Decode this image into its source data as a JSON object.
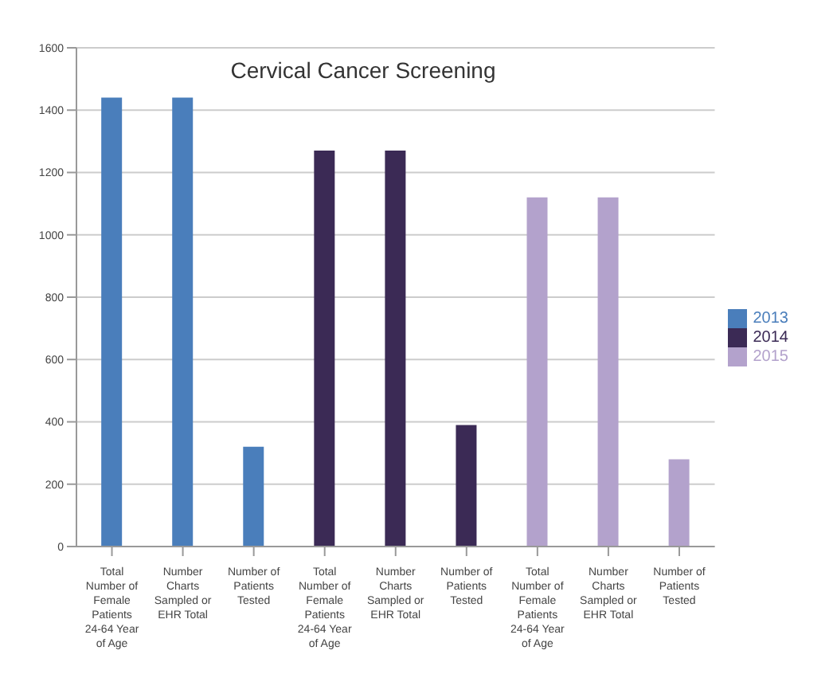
{
  "chart_data": {
    "type": "bar",
    "title": "Cervical Cancer Screening",
    "stacked": true,
    "categories": [
      "Total Number of Female Patients 24-64 Year of Age",
      "Number Charts Sampled or EHR Total",
      "Number of Patients Tested",
      "Total Number of Female Patients 24-64 Year of Age",
      "Number Charts Sampled or EHR Total",
      "Number of Patients Tested",
      "Total Number of Female Patients 24-64 Year of Age",
      "Number Charts Sampled or EHR Total",
      "Number of Patients Tested"
    ],
    "series": [
      {
        "name": "2013",
        "color": "#4a7ebb",
        "values": [
          1440,
          1440,
          320,
          null,
          null,
          null,
          null,
          null,
          null
        ]
      },
      {
        "name": "2014",
        "color": "#3b2a55",
        "values": [
          null,
          null,
          null,
          1270,
          1270,
          390,
          null,
          null,
          null
        ]
      },
      {
        "name": "2015",
        "color": "#b3a2cc",
        "values": [
          null,
          null,
          null,
          null,
          null,
          null,
          1120,
          1120,
          280
        ]
      }
    ],
    "ylim": [
      0,
      1600
    ],
    "yticks": [
      0,
      200,
      400,
      600,
      800,
      1000,
      1200,
      1400,
      1600
    ],
    "grid": "y",
    "legend": "right"
  }
}
